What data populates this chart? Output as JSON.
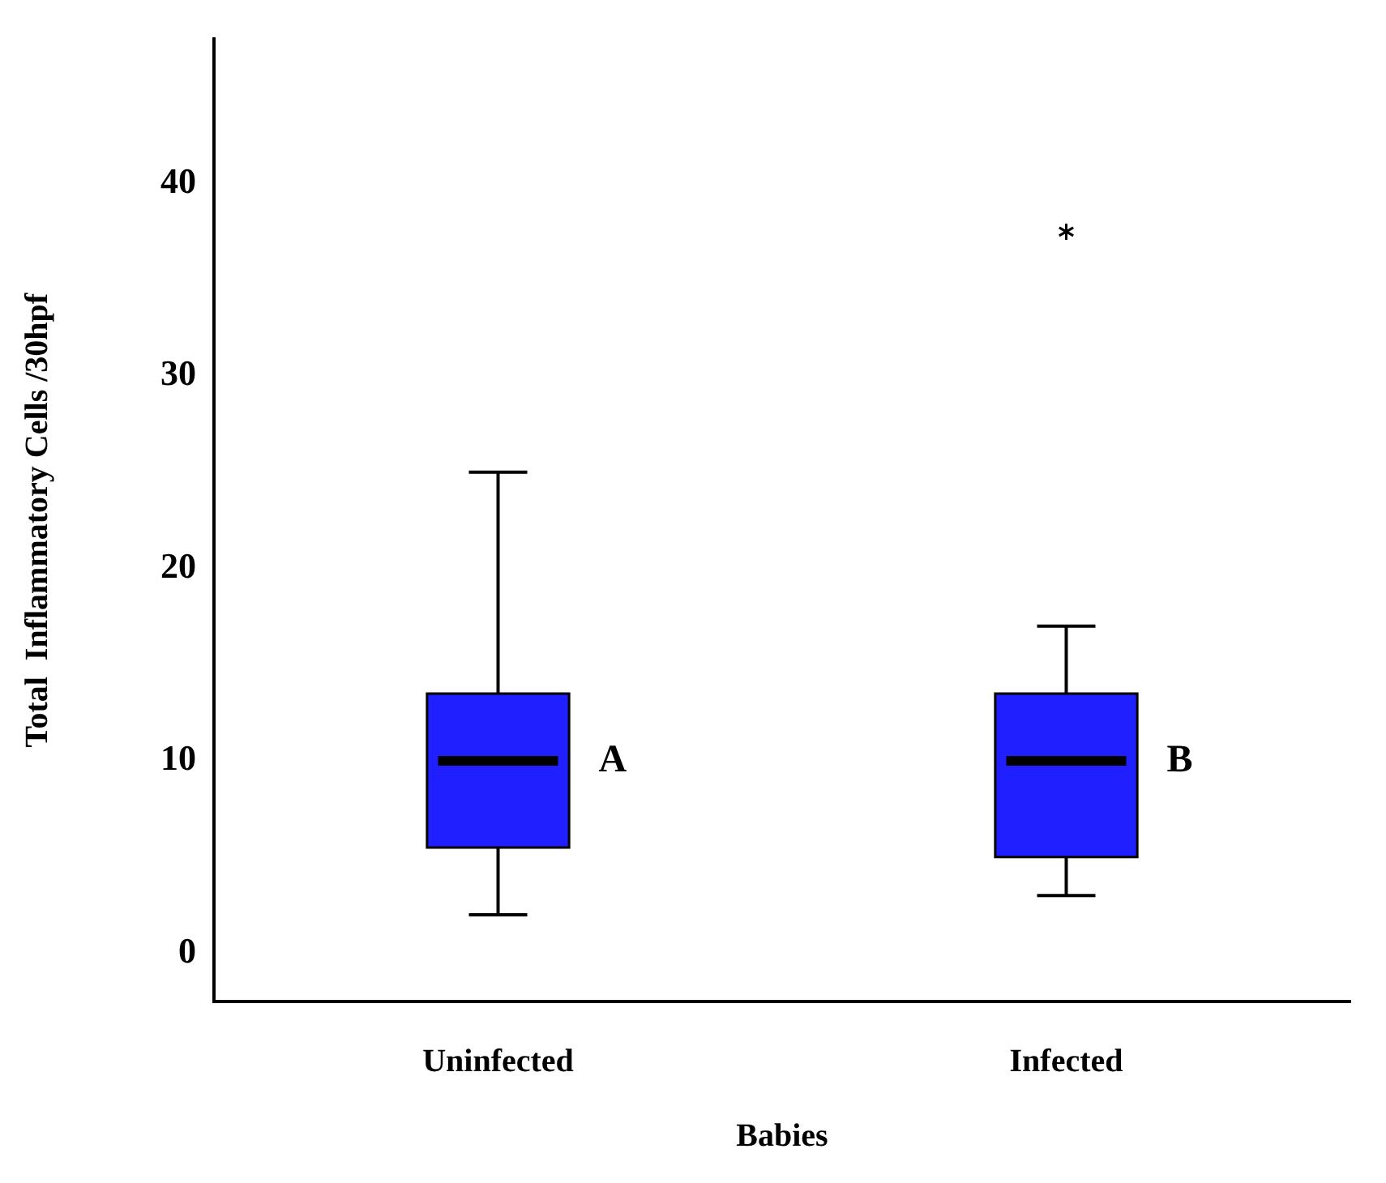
{
  "chart_data": {
    "type": "box",
    "xlabel": "Babies",
    "ylabel": "Total  Inflammatory Cells /30hpf",
    "categories": [
      "Uninfected",
      "Infected"
    ],
    "series": [
      {
        "color": "#1f1fff",
        "boxes": [
          {
            "low": 2,
            "q1": 5.5,
            "median": 10,
            "q3": 13.5,
            "high": 25
          },
          {
            "low": 3,
            "q1": 5,
            "median": 10,
            "q3": 13.5,
            "high": 17,
            "outliers": [
              37.5
            ]
          }
        ]
      }
    ],
    "ylim": [
      -2.5,
      47.5
    ],
    "yticks": [
      0,
      10,
      20,
      30,
      40
    ],
    "grid": false,
    "legend": false,
    "marker": "star",
    "annotations": [
      {
        "text": "A",
        "x": "Uninfected",
        "y": 10
      },
      {
        "text": "B",
        "x": "Infected",
        "y": 10
      }
    ]
  }
}
